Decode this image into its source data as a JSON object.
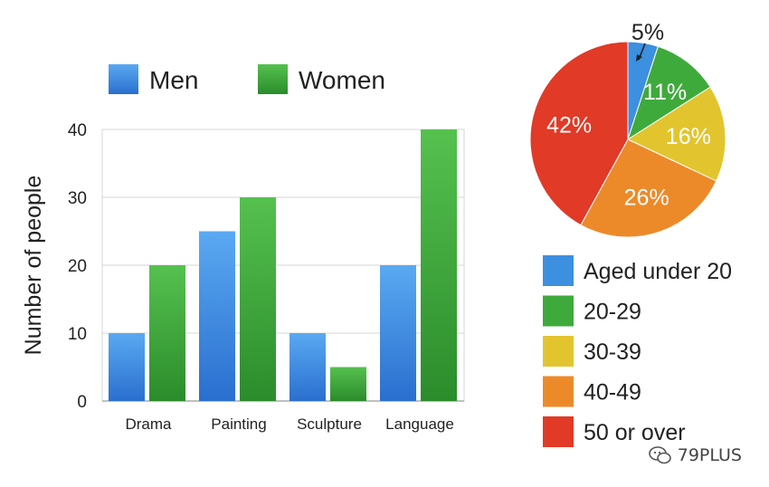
{
  "chart_data": [
    {
      "type": "bar",
      "categories": [
        "Drama",
        "Painting",
        "Sculpture",
        "Language"
      ],
      "series": [
        {
          "name": "Men",
          "color": "#3d8fe0",
          "values": [
            10,
            25,
            10,
            20
          ]
        },
        {
          "name": "Women",
          "color": "#3faa3c",
          "values": [
            20,
            30,
            5,
            40
          ]
        }
      ],
      "title": "",
      "xlabel": "",
      "ylabel": "Number of people",
      "ylim": [
        0,
        40
      ],
      "yticks": [
        0,
        10,
        20,
        30,
        40
      ],
      "grid": true,
      "legend_position": "top"
    },
    {
      "type": "pie",
      "slices": [
        {
          "label": "Aged under 20",
          "value": 5,
          "text": "5%",
          "color": "#3d8fe0"
        },
        {
          "label": "20-29",
          "value": 11,
          "text": "11%",
          "color": "#3faa3c"
        },
        {
          "label": "30-39",
          "value": 16,
          "text": "16%",
          "color": "#e2c52e"
        },
        {
          "label": "40-49",
          "value": 26,
          "text": "26%",
          "color": "#ec8a2a"
        },
        {
          "label": "50 or over",
          "value": 42,
          "text": "42%",
          "color": "#e13a26"
        }
      ],
      "legend_position": "bottom"
    }
  ],
  "watermark": "79PLUS"
}
